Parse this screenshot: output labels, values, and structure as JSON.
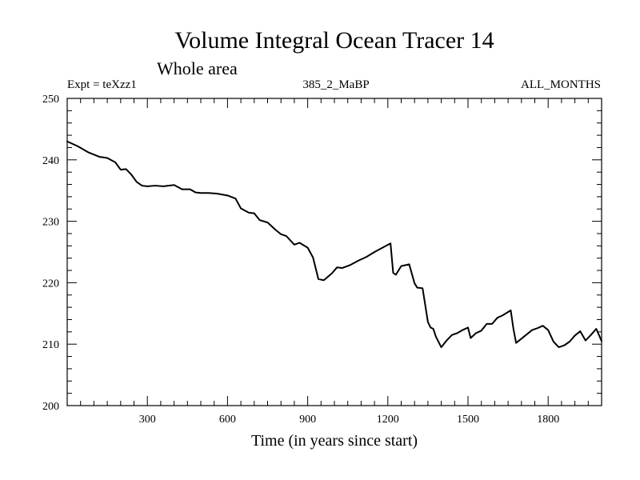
{
  "chart_data": {
    "type": "line",
    "title": "Volume Integral Ocean Tracer 14",
    "subtitle": "Whole area",
    "left_note": "Expt = teXzz1",
    "center_note": "385_2_MaBP",
    "right_note": "ALL_MONTHS",
    "xlabel": "Time (in years since start)",
    "ylabel": "",
    "xlim": [
      0,
      2000
    ],
    "ylim": [
      200,
      250
    ],
    "x_ticks": [
      300,
      600,
      900,
      1200,
      1500,
      1800
    ],
    "y_ticks": [
      200,
      210,
      220,
      230,
      240,
      250
    ],
    "grid": false,
    "series": [
      {
        "name": "Tracer 14",
        "x": [
          0,
          40,
          80,
          120,
          150,
          180,
          200,
          220,
          240,
          260,
          280,
          300,
          330,
          360,
          400,
          430,
          460,
          480,
          500,
          530,
          560,
          600,
          630,
          650,
          680,
          700,
          720,
          750,
          780,
          800,
          820,
          850,
          870,
          900,
          920,
          940,
          960,
          990,
          1010,
          1030,
          1060,
          1090,
          1120,
          1150,
          1180,
          1210,
          1220,
          1230,
          1250,
          1270,
          1280,
          1300,
          1310,
          1330,
          1350,
          1360,
          1370,
          1380,
          1400,
          1420,
          1440,
          1460,
          1480,
          1500,
          1510,
          1530,
          1550,
          1570,
          1590,
          1610,
          1630,
          1660,
          1670,
          1680,
          1700,
          1720,
          1740,
          1760,
          1780,
          1800,
          1820,
          1840,
          1860,
          1880,
          1900,
          1920,
          1940,
          1960,
          1980,
          2000
        ],
        "values": [
          243,
          242.2,
          241.2,
          240.5,
          240.3,
          239.6,
          238.4,
          238.5,
          237.6,
          236.4,
          235.8,
          235.7,
          235.8,
          235.7,
          235.9,
          235.2,
          235.2,
          234.7,
          234.6,
          234.6,
          234.5,
          234.2,
          233.7,
          232.1,
          231.4,
          231.3,
          230.2,
          229.8,
          228.6,
          227.9,
          227.6,
          226.2,
          226.5,
          225.7,
          224.1,
          220.6,
          220.4,
          221.5,
          222.5,
          222.4,
          222.9,
          223.6,
          224.2,
          225,
          225.7,
          226.4,
          221.6,
          221.3,
          222.7,
          222.9,
          223,
          219.9,
          219.2,
          219.1,
          213.6,
          212.7,
          212.5,
          211.2,
          209.5,
          210.6,
          211.5,
          211.8,
          212.3,
          212.7,
          211,
          211.8,
          212.2,
          213.3,
          213.3,
          214.3,
          214.7,
          215.5,
          212.5,
          210.2,
          210.9,
          211.6,
          212.3,
          212.6,
          213,
          212.3,
          210.4,
          209.5,
          209.8,
          210.4,
          211.4,
          212.1,
          210.6,
          211.5,
          212.5,
          210.5
        ]
      }
    ]
  }
}
